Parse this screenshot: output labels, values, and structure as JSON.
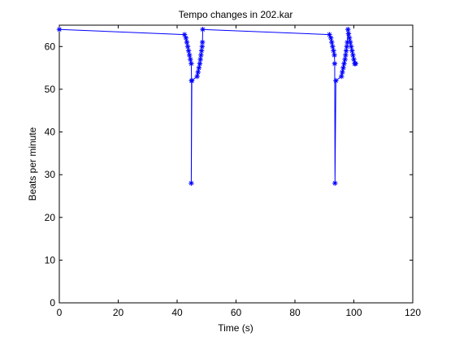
{
  "chart_data": {
    "type": "line",
    "title": "Tempo changes in 202.kar",
    "xlabel": "Time (s)",
    "ylabel": "Beats per minute",
    "xlim": [
      0,
      120
    ],
    "ylim": [
      0,
      65
    ],
    "xticks": [
      0,
      20,
      40,
      60,
      80,
      100,
      120
    ],
    "yticks": [
      0,
      10,
      20,
      30,
      40,
      50,
      60
    ],
    "grid": false,
    "line_color": "#0000ff",
    "marker": "asterisk",
    "series": [
      {
        "x": [
          0,
          42.5,
          43.0,
          43.3,
          43.6,
          43.9,
          44.2,
          44.5,
          44.8,
          44.9,
          44.8,
          45.0,
          46.8,
          47.1,
          47.4,
          47.7,
          47.9,
          48.1,
          48.3,
          48.5,
          48.6,
          48.7,
          91.7,
          92.2,
          92.5,
          92.8,
          93.1,
          93.4,
          93.5,
          93.6,
          93.9,
          95.8,
          96.1,
          96.4,
          96.7,
          97.0,
          97.2,
          97.4,
          97.6,
          97.8,
          98.0,
          98.2,
          98.5,
          98.8,
          99.1,
          99.4,
          99.7,
          100.0,
          100.3,
          100.6
        ],
        "y": [
          64,
          62.8,
          62,
          61,
          60,
          59,
          58,
          57,
          56,
          52,
          28,
          52,
          53,
          54,
          55,
          56,
          57,
          58,
          59,
          60,
          61,
          64,
          62.8,
          62,
          61,
          60,
          59,
          58,
          56,
          28,
          52,
          53,
          54,
          55,
          56,
          57,
          58,
          59,
          60,
          61,
          64,
          63,
          62,
          61,
          60,
          59,
          58,
          57,
          56,
          56
        ]
      }
    ]
  }
}
